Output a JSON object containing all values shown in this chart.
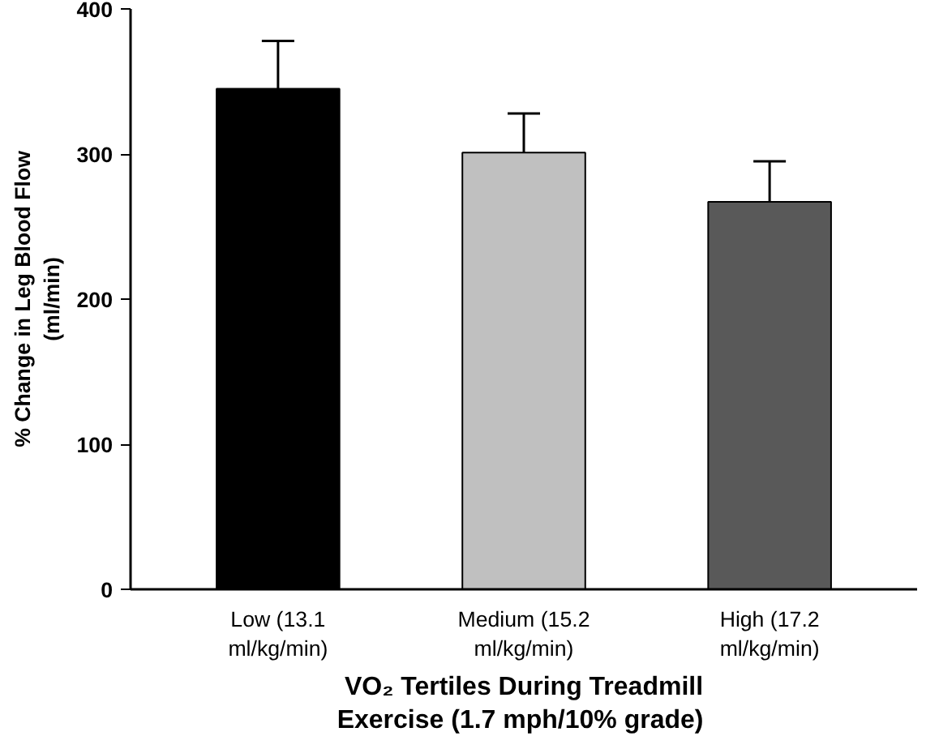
{
  "chart_data": {
    "type": "bar",
    "categories": [
      "Low (13.1\nml/kg/min)",
      "Medium (15.2\nml/kg/min)",
      "High (17.2\nml/kg/min)"
    ],
    "values": [
      345,
      301,
      267
    ],
    "colors": [
      "#000000",
      "#c0c0c0",
      "#595959"
    ],
    "errors": [
      [
        345,
        378
      ],
      [
        301,
        328
      ],
      [
        267,
        295
      ]
    ],
    "xlabel": "VO₂ Tertiles During Treadmill\nExercise (1.7 mph/10%  grade)",
    "ylabel": "% Change in Leg Blood Flow\n(ml/min)",
    "ylim": [
      0,
      400
    ],
    "yticks": [
      0,
      100,
      200,
      300,
      400
    ],
    "grid": false
  }
}
